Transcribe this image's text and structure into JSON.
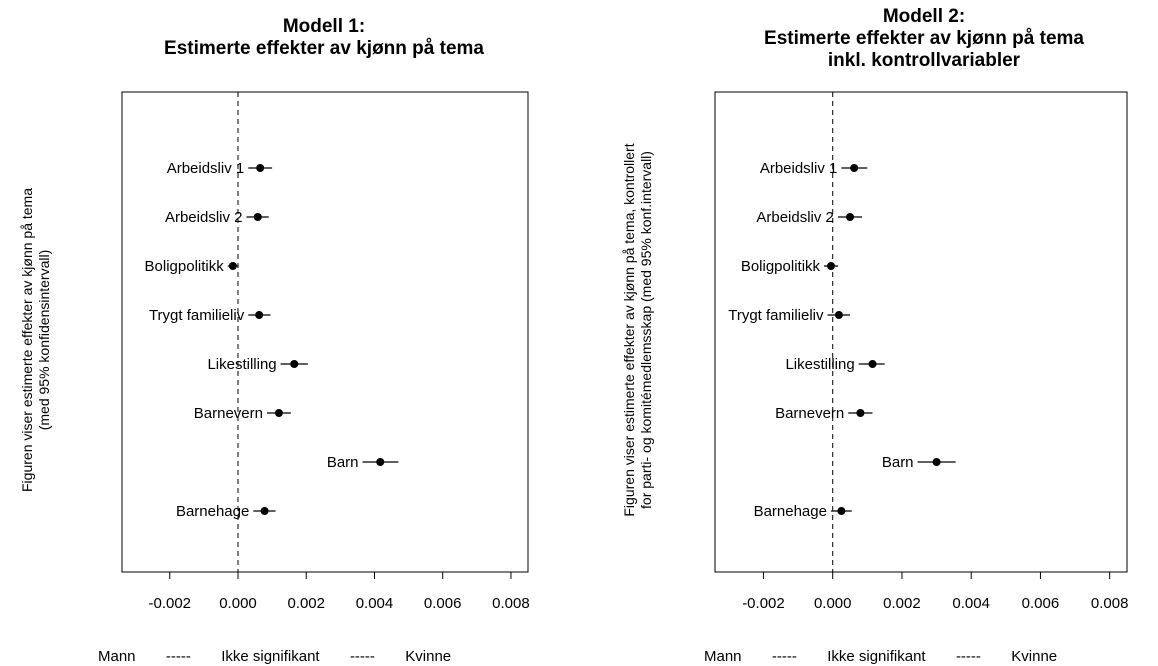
{
  "chart_data": [
    {
      "type": "scatter",
      "title_lines": [
        "Modell 1:",
        "Estimerte effekter av kjønn på tema"
      ],
      "ylabel_lines": [
        "Figuren viser estimerte effekter av kjønn på tema",
        "(med 95% konfidensintervall)"
      ],
      "xlim": [
        -0.0034,
        0.0085
      ],
      "x_ticks": [
        -0.002,
        0.0,
        0.002,
        0.004,
        0.006,
        0.008
      ],
      "x_tick_labels": [
        "-0.002",
        "0.000",
        "0.002",
        "0.004",
        "0.006",
        "0.008"
      ],
      "reference_line_x": 0,
      "grid": false,
      "points": [
        {
          "label": "Arbeidsliv 1",
          "estimate": 0.00065,
          "ci": [
            0.0003,
            0.001
          ]
        },
        {
          "label": "Arbeidsliv 2",
          "estimate": 0.00058,
          "ci": [
            0.00025,
            0.0009
          ]
        },
        {
          "label": "Boligpolitikk",
          "estimate": -0.00015,
          "ci": [
            -0.0003,
            0.0
          ]
        },
        {
          "label": "Trygt familieliv",
          "estimate": 0.00062,
          "ci": [
            0.0003,
            0.00095
          ]
        },
        {
          "label": "Likestilling",
          "estimate": 0.00165,
          "ci": [
            0.00125,
            0.00205
          ]
        },
        {
          "label": "Barnevern",
          "estimate": 0.0012,
          "ci": [
            0.00085,
            0.00155
          ]
        },
        {
          "label": "Barn",
          "estimate": 0.00417,
          "ci": [
            0.00365,
            0.0047
          ]
        },
        {
          "label": "Barnehage",
          "estimate": 0.00078,
          "ci": [
            0.00045,
            0.0011
          ]
        }
      ],
      "footer": {
        "left": "Mann",
        "sep1": "-----",
        "middle": "Ikke signifikant",
        "sep2": "-----",
        "right": "Kvinne"
      }
    },
    {
      "type": "scatter",
      "title_lines": [
        "Modell 2:",
        "Estimerte effekter av kjønn på tema",
        "inkl. kontrollvariabler"
      ],
      "ylabel_lines": [
        "Figuren viser estimerte effekter av kjønn på tema, kontrollert",
        "for parti- og komitémedlemsskap (med 95% konf.intervall)"
      ],
      "xlim": [
        -0.0034,
        0.0085
      ],
      "x_ticks": [
        -0.002,
        0.0,
        0.002,
        0.004,
        0.006,
        0.008
      ],
      "x_tick_labels": [
        "-0.002",
        "0.000",
        "0.002",
        "0.004",
        "0.006",
        "0.008"
      ],
      "reference_line_x": 0,
      "grid": false,
      "points": [
        {
          "label": "Arbeidsliv 1",
          "estimate": 0.00062,
          "ci": [
            0.00025,
            0.001
          ]
        },
        {
          "label": "Arbeidsliv 2",
          "estimate": 0.0005,
          "ci": [
            0.00015,
            0.00085
          ]
        },
        {
          "label": "Boligpolitikk",
          "estimate": -5e-05,
          "ci": [
            -0.00025,
            0.00015
          ]
        },
        {
          "label": "Trygt familieliv",
          "estimate": 0.00018,
          "ci": [
            -0.00015,
            0.0005
          ]
        },
        {
          "label": "Likestilling",
          "estimate": 0.00115,
          "ci": [
            0.00075,
            0.0015
          ]
        },
        {
          "label": "Barnevern",
          "estimate": 0.0008,
          "ci": [
            0.00045,
            0.00115
          ]
        },
        {
          "label": "Barn",
          "estimate": 0.003,
          "ci": [
            0.00245,
            0.00355
          ]
        },
        {
          "label": "Barnehage",
          "estimate": 0.00025,
          "ci": [
            -5e-05,
            0.00055
          ]
        }
      ],
      "footer": {
        "left": "Mann",
        "sep1": "-----",
        "middle": "Ikke signifikant",
        "sep2": "-----",
        "right": "Kvinne"
      }
    }
  ]
}
